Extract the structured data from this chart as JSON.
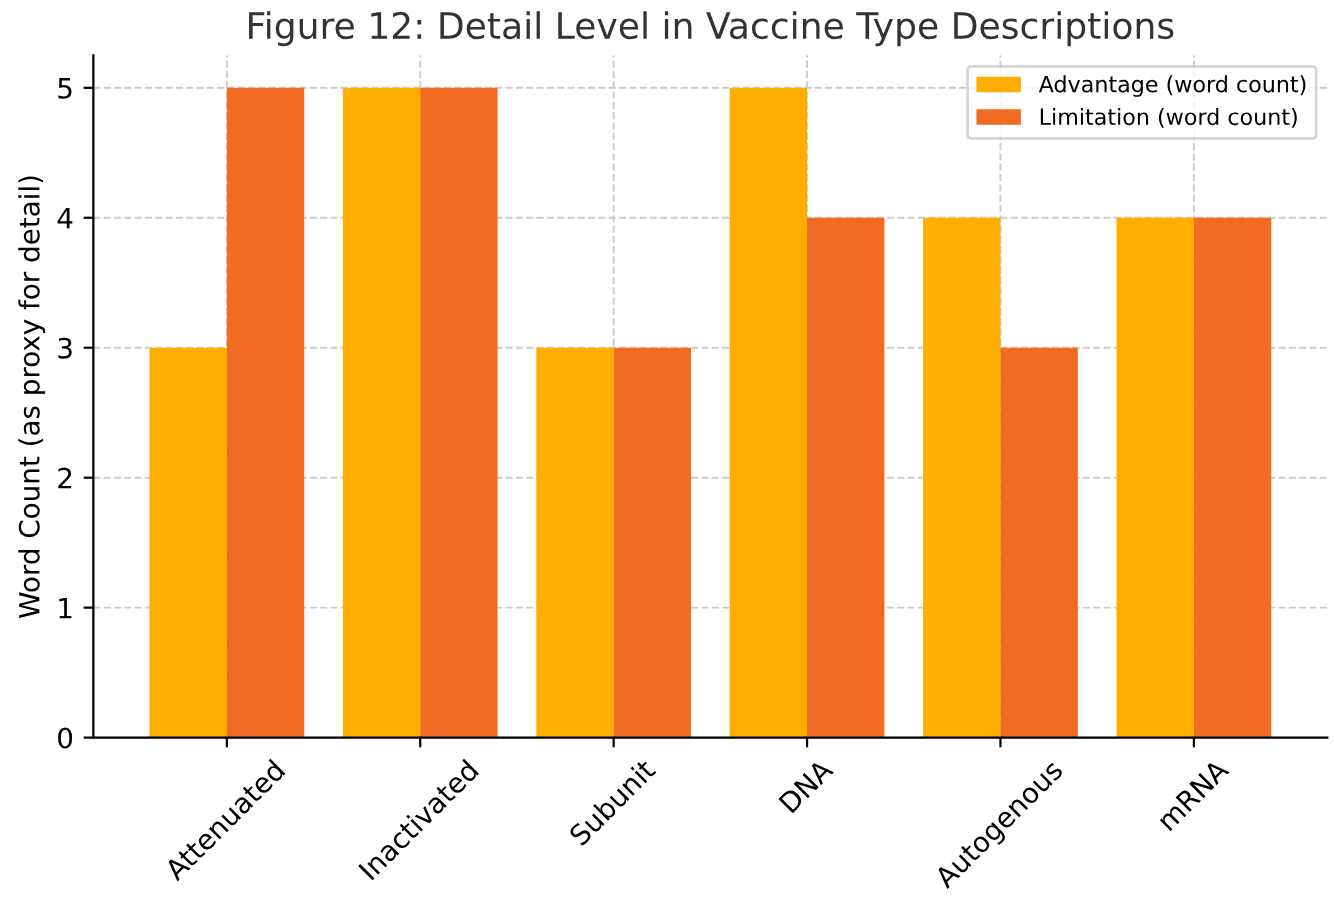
{
  "chart_data": {
    "type": "bar",
    "title": "Figure 12: Detail Level in Vaccine Type Descriptions",
    "ylabel": "Word Count (as proxy for detail)",
    "categories": [
      "Attenuated",
      "Inactivated",
      "Subunit",
      "DNA",
      "Autogenous",
      "mRNA"
    ],
    "series": [
      {
        "name": "Advantage (word count)",
        "color": "#ffae00",
        "values": [
          3,
          5,
          3,
          5,
          4,
          4
        ]
      },
      {
        "name": "Limitation (word count)",
        "color": "#f26b22",
        "values": [
          5,
          5,
          3,
          4,
          3,
          4
        ]
      }
    ],
    "ylim": [
      0,
      5.25
    ],
    "yticks": [
      0,
      1,
      2,
      3,
      4,
      5
    ],
    "grid": true,
    "legend": "top right"
  }
}
